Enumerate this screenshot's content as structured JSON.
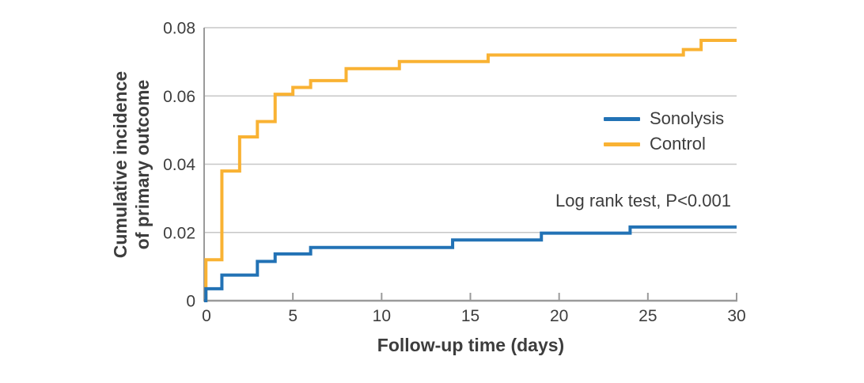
{
  "figure": {
    "y_axis": {
      "label_line1": "Cumulative incidence",
      "label_line2": "of primary outcome",
      "tick_labels": [
        "0",
        "0.02",
        "0.04",
        "0.06",
        "0.08"
      ]
    },
    "x_axis": {
      "label": "Follow-up time (days)",
      "tick_labels": [
        "0",
        "5",
        "10",
        "15",
        "20",
        "25",
        "30"
      ]
    },
    "annotation": "Log rank test, P<0.001",
    "legend": [
      {
        "label": "Sonolysis",
        "color": "#2272B5"
      },
      {
        "label": "Control",
        "color": "#F9B233"
      }
    ],
    "colors": {
      "sonolysis": "#2272B5",
      "control": "#F9B233",
      "grid": "#C7C7C7",
      "axis": "#9A9A9A",
      "text": "#3D3D3D"
    }
  },
  "chart_data": {
    "type": "line",
    "subtype": "step-post",
    "title": "",
    "xlabel": "Follow-up time (days)",
    "ylabel": "Cumulative incidence of primary outcome",
    "xlim": [
      0,
      30
    ],
    "ylim": [
      0,
      0.08
    ],
    "x_ticks": [
      0,
      5,
      10,
      15,
      20,
      25,
      30
    ],
    "y_ticks": [
      0,
      0.02,
      0.04,
      0.06,
      0.08
    ],
    "grid": "horizontal-only",
    "legend_position": "right-middle",
    "annotation": "Log rank test, P<0.001",
    "series": [
      {
        "name": "Sonolysis",
        "color": "#2272B5",
        "steps": [
          [
            0,
            0
          ],
          [
            0.1,
            0.0035
          ],
          [
            1,
            0.0075
          ],
          [
            3,
            0.0115
          ],
          [
            4,
            0.0137
          ],
          [
            6,
            0.0156
          ],
          [
            14,
            0.0178
          ],
          [
            19,
            0.0198
          ],
          [
            24,
            0.0216
          ],
          [
            30,
            0.0216
          ]
        ]
      },
      {
        "name": "Control",
        "color": "#F9B233",
        "steps": [
          [
            0,
            0
          ],
          [
            0.1,
            0.012
          ],
          [
            1,
            0.038
          ],
          [
            2,
            0.048
          ],
          [
            3,
            0.0525
          ],
          [
            4,
            0.0605
          ],
          [
            5,
            0.0625
          ],
          [
            6,
            0.0645
          ],
          [
            8,
            0.068
          ],
          [
            11,
            0.0701
          ],
          [
            16,
            0.072
          ],
          [
            27,
            0.0736
          ],
          [
            28,
            0.0763
          ],
          [
            30,
            0.0763
          ]
        ]
      }
    ]
  }
}
